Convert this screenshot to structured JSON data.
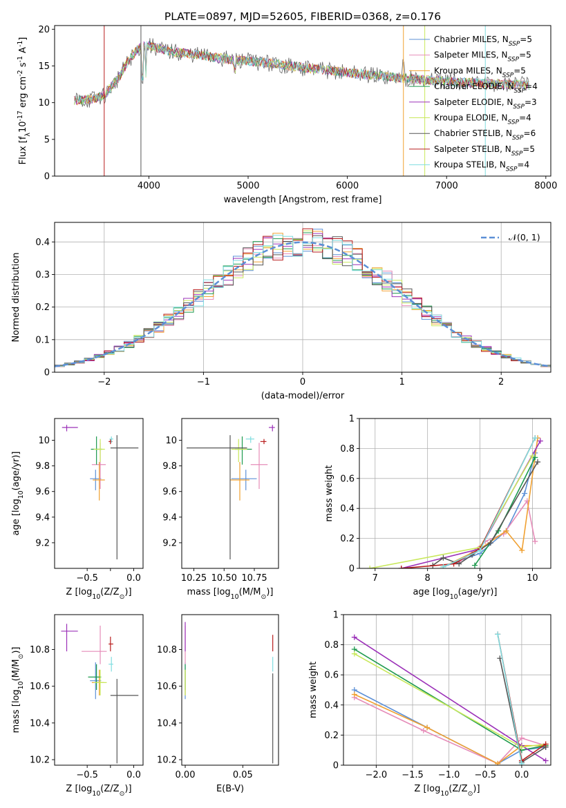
{
  "figure": {
    "title": "PLATE=0897, MJD=52605, FIBERID=0368, z=0.176"
  },
  "models": [
    {
      "name": "Chabrier MILES",
      "nssp": "5",
      "color": "#5b8fd6"
    },
    {
      "name": "Salpeter MILES",
      "nssp": "5",
      "color": "#e58bb8"
    },
    {
      "name": "Kroupa MILES",
      "nssp": "5",
      "color": "#f0a030"
    },
    {
      "name": "Chabrier ELODIE",
      "nssp": "4",
      "color": "#1e9a4e"
    },
    {
      "name": "Salpeter ELODIE",
      "nssp": "3",
      "color": "#9b30b8"
    },
    {
      "name": "Kroupa ELODIE",
      "nssp": "4",
      "color": "#c8e85a"
    },
    {
      "name": "Chabrier STELIB",
      "nssp": "6",
      "color": "#555555"
    },
    {
      "name": "Salpeter STELIB",
      "nssp": "5",
      "color": "#b81c1c"
    },
    {
      "name": "Kroupa STELIB",
      "nssp": "4",
      "color": "#7fdde0"
    }
  ],
  "chart_data": [
    {
      "id": "spectrum",
      "type": "line",
      "title": "PLATE=0897, MJD=52605, FIBERID=0368, z=0.176",
      "xlabel": "wavelength [Angstrom, rest frame]",
      "ylabel": "Flux [f$_\\lambda$10$^{-17}$ erg cm$^{-2}$ s$^{-1}$ A$^{-1}$]",
      "xlim": [
        3050,
        8050
      ],
      "ylim": [
        0,
        20.5
      ],
      "xticks": [
        4000,
        5000,
        6000,
        7000,
        8000
      ],
      "yticks": [
        0,
        5,
        10,
        15,
        20
      ],
      "x": [
        3250,
        3400,
        3550,
        3700,
        3800,
        3900,
        4000,
        4200,
        4500,
        4800,
        5200,
        5600,
        6000,
        6300,
        6600,
        7000,
        7400,
        7800
      ],
      "y": [
        10.3,
        10.4,
        11.0,
        13.5,
        15.8,
        17.5,
        17.8,
        17.0,
        16.5,
        15.9,
        15.4,
        14.7,
        14.1,
        13.7,
        13.3,
        12.9,
        12.6,
        12.4
      ],
      "legend": "top-right"
    },
    {
      "id": "residuals",
      "type": "line",
      "xlabel": "(data-model)/error",
      "ylabel": "Normed distribution",
      "xlim": [
        -2.5,
        2.5
      ],
      "ylim": [
        0,
        0.46
      ],
      "xticks": [
        -2,
        -1,
        0,
        1,
        2
      ],
      "yticks": [
        0.0,
        0.1,
        0.2,
        0.3,
        0.4
      ],
      "reference_label": "$\\mathcal{N}(0, 1)$",
      "reference_color": "#5b8fd6",
      "grid": true,
      "legend": "top-right"
    },
    {
      "id": "age-vs-Z",
      "type": "scatter",
      "xlabel": "Z [log$_{10}$(Z/Z$_\\odot$)]",
      "ylabel": "age  [log$_{10}$(age/yr)]",
      "xlim": [
        -0.85,
        0.1
      ],
      "ylim": [
        9.0,
        10.17
      ],
      "xticks": [
        -0.5,
        -0.25,
        0.0
      ],
      "xticklabels": [
        "−0.5",
        "",
        "0.0"
      ],
      "yticks": [
        9.2,
        9.4,
        9.6,
        9.8,
        10.0
      ],
      "points": [
        {
          "x": -0.41,
          "xerr": [
            0.06,
            0.06
          ],
          "y": 9.7,
          "yerr": [
            0.09,
            0.07
          ]
        },
        {
          "x": -0.36,
          "xerr": [
            0.09,
            0.06
          ],
          "y": 9.81,
          "yerr": [
            0.19,
            0.17
          ]
        },
        {
          "x": -0.37,
          "xerr": [
            0.07,
            0.06
          ],
          "y": 9.69,
          "yerr": [
            0.16,
            0.14
          ]
        },
        {
          "x": -0.4,
          "xerr": [
            0.06,
            0.06
          ],
          "y": 9.93,
          "yerr": [
            0.12,
            0.1
          ]
        },
        {
          "x": -0.72,
          "xerr": [
            0.05,
            0.12
          ],
          "y": 10.1,
          "yerr": [
            0.03,
            0.02
          ]
        },
        {
          "x": -0.36,
          "xerr": [
            0.07,
            0.05
          ],
          "y": 9.93,
          "yerr": [
            0.1,
            0.08
          ]
        },
        {
          "x": -0.18,
          "xerr": [
            0.07,
            0.23
          ],
          "y": 9.94,
          "yerr": [
            0.87,
            0.1
          ]
        },
        {
          "x": -0.25,
          "xerr": [
            0.02,
            0.02
          ],
          "y": 9.99,
          "yerr": [
            0.02,
            0.02
          ]
        },
        {
          "x": -0.24,
          "xerr": [
            0.02,
            0.02
          ],
          "y": 10.01,
          "yerr": [
            0.03,
            0.02
          ]
        }
      ]
    },
    {
      "id": "age-vs-mass",
      "type": "scatter",
      "xlabel": "mass [log$_{10}$(M/M$_\\odot$)]",
      "xlim": [
        10.15,
        10.95
      ],
      "ylim": [
        9.0,
        10.17
      ],
      "xticks": [
        10.25,
        10.5,
        10.75
      ],
      "xticklabels": [
        "10.25",
        "10.50",
        "10.75"
      ],
      "yticks": [
        9.2,
        9.4,
        9.6,
        9.8,
        10.0
      ],
      "points": [
        {
          "x": 10.68,
          "xerr": [
            0.12,
            0.09
          ],
          "y": 9.7,
          "yerr": [
            0.09,
            0.07
          ]
        },
        {
          "x": 10.79,
          "xerr": [
            0.07,
            0.07
          ],
          "y": 9.81,
          "yerr": [
            0.19,
            0.17
          ]
        },
        {
          "x": 10.63,
          "xerr": [
            0.08,
            0.08
          ],
          "y": 9.69,
          "yerr": [
            0.16,
            0.14
          ]
        },
        {
          "x": 10.65,
          "xerr": [
            0.06,
            0.08
          ],
          "y": 9.93,
          "yerr": [
            0.12,
            0.1
          ]
        },
        {
          "x": 10.9,
          "xerr": [
            0.03,
            0.02
          ],
          "y": 10.1,
          "yerr": [
            0.03,
            0.02
          ]
        },
        {
          "x": 10.62,
          "xerr": [
            0.06,
            0.07
          ],
          "y": 9.93,
          "yerr": [
            0.1,
            0.08
          ]
        },
        {
          "x": 10.55,
          "xerr": [
            0.36,
            0.14
          ],
          "y": 9.94,
          "yerr": [
            0.87,
            0.1
          ]
        },
        {
          "x": 10.83,
          "xerr": [
            0.03,
            0.02
          ],
          "y": 9.99,
          "yerr": [
            0.02,
            0.02
          ]
        },
        {
          "x": 10.72,
          "xerr": [
            0.04,
            0.03
          ],
          "y": 10.01,
          "yerr": [
            0.03,
            0.02
          ]
        }
      ]
    },
    {
      "id": "mass-weight-vs-age",
      "type": "line",
      "xlabel": "age  [log$_{10}$(age/yr)]",
      "ylabel": "mass weight",
      "xlim": [
        6.7,
        10.35
      ],
      "ylim": [
        0,
        1.0
      ],
      "xticks": [
        7,
        8,
        9,
        10
      ],
      "yticks": [
        0.0,
        0.2,
        0.4,
        0.6,
        0.8,
        1.0
      ],
      "grid": true,
      "series": [
        {
          "x": [
            8.3,
            9.0,
            9.5,
            9.85,
            10.05
          ],
          "y": [
            0.01,
            0.1,
            0.25,
            0.5,
            0.77
          ]
        },
        {
          "x": [
            8.6,
            9.1,
            9.45,
            9.9,
            10.05
          ],
          "y": [
            0.04,
            0.18,
            0.23,
            0.45,
            0.18
          ]
        },
        {
          "x": [
            8.3,
            9.0,
            9.5,
            9.8,
            10.1
          ],
          "y": [
            0.01,
            0.13,
            0.25,
            0.12,
            0.87
          ]
        },
        {
          "x": [
            8.9,
            9.35,
            10.05
          ],
          "y": [
            0.02,
            0.25,
            0.74
          ]
        },
        {
          "x": [
            7.5,
            9.0,
            10.15
          ],
          "y": [
            0.0,
            0.13,
            0.85
          ]
        },
        {
          "x": [
            6.9,
            9.0,
            10.0
          ],
          "y": [
            0.0,
            0.14,
            0.75
          ]
        },
        {
          "x": [
            8.1,
            8.3,
            8.6,
            8.85,
            9.2,
            10.1
          ],
          "y": [
            0.02,
            0.07,
            0.03,
            0.09,
            0.17,
            0.71
          ]
        },
        {
          "x": [
            7.5,
            8.5,
            9.0,
            10.05
          ],
          "y": [
            0.0,
            0.03,
            0.13,
            0.87
          ]
        },
        {
          "x": [
            8.3,
            9.0,
            10.05
          ],
          "y": [
            0.01,
            0.12,
            0.87
          ]
        }
      ]
    },
    {
      "id": "mass-vs-Z",
      "type": "scatter",
      "xlabel": "Z [log$_{10}$(Z/Z$_\\odot$)]",
      "ylabel": "mass [log$_{10}$(M/M$_\\odot$)]",
      "xlim": [
        -0.85,
        0.1
      ],
      "ylim": [
        10.17,
        10.99
      ],
      "xticks": [
        -0.5,
        -0.25,
        0.0
      ],
      "xticklabels": [
        "−0.5",
        "",
        "0.0"
      ],
      "yticks": [
        10.2,
        10.4,
        10.6,
        10.8
      ],
      "points": [
        {
          "x": -0.41,
          "xerr": [
            0.06,
            0.06
          ],
          "y": 10.63,
          "yerr": [
            0.1,
            0.1
          ]
        },
        {
          "x": -0.36,
          "xerr": [
            0.2,
            0.07
          ],
          "y": 10.79,
          "yerr": [
            0.07,
            0.14
          ]
        },
        {
          "x": -0.37,
          "xerr": [
            0.08,
            0.05
          ],
          "y": 10.62,
          "yerr": [
            0.07,
            0.07
          ]
        },
        {
          "x": -0.4,
          "xerr": [
            0.09,
            0.05
          ],
          "y": 10.65,
          "yerr": [
            0.07,
            0.07
          ]
        },
        {
          "x": -0.72,
          "xerr": [
            0.06,
            0.12
          ],
          "y": 10.9,
          "yerr": [
            0.11,
            0.04
          ]
        },
        {
          "x": -0.36,
          "xerr": [
            0.07,
            0.07
          ],
          "y": 10.62,
          "yerr": [
            0.07,
            0.07
          ]
        },
        {
          "x": -0.18,
          "xerr": [
            0.07,
            0.23
          ],
          "y": 10.55,
          "yerr": [
            0.37,
            0.09
          ]
        },
        {
          "x": -0.25,
          "xerr": [
            0.02,
            0.03
          ],
          "y": 10.83,
          "yerr": [
            0.04,
            0.04
          ]
        },
        {
          "x": -0.24,
          "xerr": [
            0.03,
            0.02
          ],
          "y": 10.72,
          "yerr": [
            0.04,
            0.04
          ]
        }
      ]
    },
    {
      "id": "mass-vs-EBV",
      "type": "scatter",
      "xlabel": "E(B-V)",
      "xlim": [
        -0.003,
        0.081
      ],
      "ylim": [
        10.17,
        10.99
      ],
      "xticks": [
        0.0,
        0.05
      ],
      "xticklabels": [
        "0.00",
        "0.05"
      ],
      "yticks": [
        10.2,
        10.4,
        10.6,
        10.8
      ],
      "points": [
        {
          "x": 0.0,
          "y": 10.63,
          "yerr": [
            0.1,
            0.1
          ]
        },
        {
          "x": 0.0,
          "y": 10.79,
          "yerr": [
            0.07,
            0.14
          ]
        },
        {
          "x": 0.0,
          "y": 10.62,
          "yerr": [
            0.07,
            0.07
          ]
        },
        {
          "x": 0.0,
          "y": 10.65,
          "yerr": [
            0.07,
            0.07
          ]
        },
        {
          "x": 0.0,
          "y": 10.9,
          "yerr": [
            0.11,
            0.05
          ]
        },
        {
          "x": 0.0,
          "y": 10.62,
          "yerr": [
            0.07,
            0.07
          ]
        },
        {
          "x": 0.076,
          "y": 10.55,
          "yerr": [
            0.37,
            0.12
          ]
        },
        {
          "x": 0.076,
          "y": 10.83,
          "yerr": [
            0.04,
            0.05
          ]
        },
        {
          "x": 0.076,
          "y": 10.72,
          "yerr": [
            0.04,
            0.04
          ]
        }
      ]
    },
    {
      "id": "mass-weight-vs-Z",
      "type": "line",
      "xlabel": "Z [log$_{10}$(Z/Z$_\\odot$)]",
      "ylabel": "mass weight",
      "xlim": [
        -2.45,
        0.4
      ],
      "ylim": [
        0,
        1.0
      ],
      "xticks": [
        -2.0,
        -1.5,
        -1.0,
        -0.5,
        0.0
      ],
      "xticklabels": [
        "−2.0",
        "−1.5",
        "−1.0",
        "−0.5",
        "0.0"
      ],
      "yticks": [
        0.0,
        0.2,
        0.4,
        0.6,
        0.8,
        1.0
      ],
      "grid": true,
      "series": [
        {
          "x": [
            -2.3,
            -1.3,
            -0.33,
            0.0,
            0.33
          ],
          "y": [
            0.5,
            0.25,
            0.01,
            0.1,
            0.12
          ]
        },
        {
          "x": [
            -2.3,
            -1.35,
            -0.33,
            0.0,
            0.33
          ],
          "y": [
            0.45,
            0.23,
            0.01,
            0.18,
            0.13
          ]
        },
        {
          "x": [
            -2.3,
            -1.3,
            -0.33,
            0.0,
            0.33
          ],
          "y": [
            0.47,
            0.25,
            0.01,
            0.13,
            0.13
          ]
        },
        {
          "x": [
            -2.3,
            0.0,
            0.33
          ],
          "y": [
            0.77,
            0.1,
            0.13
          ]
        },
        {
          "x": [
            -2.3,
            0.0,
            0.33
          ],
          "y": [
            0.85,
            0.13,
            0.03
          ]
        },
        {
          "x": [
            -2.3,
            0.0,
            0.33
          ],
          "y": [
            0.74,
            0.12,
            0.14
          ]
        },
        {
          "x": [
            -0.3,
            0.0,
            0.33
          ],
          "y": [
            0.71,
            0.02,
            0.12
          ]
        },
        {
          "x": [
            -0.33,
            0.0,
            0.33
          ],
          "y": [
            0.87,
            0.03,
            0.14
          ]
        },
        {
          "x": [
            -0.33,
            0.0
          ],
          "y": [
            0.87,
            0.01
          ]
        }
      ]
    }
  ]
}
